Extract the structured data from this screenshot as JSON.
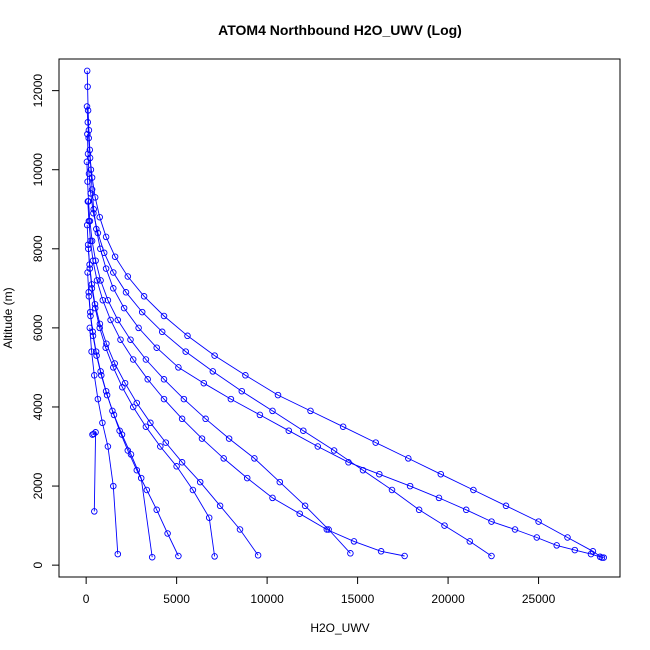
{
  "chart_data": {
    "type": "line",
    "title": "ATOM4 Northbound H2O_UWV (Log)",
    "xlabel": "H2O_UWV",
    "ylabel": "Altitude (m)",
    "xlim": [
      -1500,
      29500
    ],
    "ylim": [
      -300,
      12800
    ],
    "xticks": [
      0,
      5000,
      10000,
      15000,
      20000,
      25000
    ],
    "yticks": [
      0,
      2000,
      4000,
      6000,
      8000,
      10000,
      12000
    ],
    "series_color": "#0000ff",
    "marker": "open-circle",
    "grid": false,
    "series": [
      {
        "x": [
          60,
          80,
          110,
          150,
          200,
          260,
          330,
          420,
          560,
          780,
          1100,
          1500,
          2100,
          2900,
          3900,
          5100,
          6500,
          8000,
          9600,
          11200,
          12800,
          14500,
          16200,
          17900,
          19500,
          21000,
          22400,
          23700,
          24900,
          26000,
          27000,
          27900,
          28400,
          28600
        ],
        "y": [
          12500,
          12100,
          11500,
          11000,
          10500,
          10000,
          9500,
          9000,
          8500,
          8000,
          7500,
          7000,
          6500,
          6000,
          5500,
          5000,
          4600,
          4200,
          3800,
          3400,
          3000,
          2600,
          2300,
          2000,
          1700,
          1400,
          1100,
          900,
          700,
          500,
          380,
          280,
          210,
          190
        ]
      },
      {
        "x": [
          50,
          90,
          140,
          220,
          330,
          500,
          750,
          1100,
          1600,
          2300,
          3200,
          4300,
          5600,
          7100,
          8800,
          10600,
          12400,
          14200,
          16000,
          17800,
          19600,
          21400,
          23200,
          25000,
          26600,
          28000,
          28500
        ],
        "y": [
          11600,
          11200,
          10800,
          10300,
          9800,
          9300,
          8800,
          8300,
          7800,
          7300,
          6800,
          6300,
          5800,
          5300,
          4800,
          4300,
          3900,
          3500,
          3100,
          2700,
          2300,
          1900,
          1500,
          1100,
          700,
          350,
          190
        ]
      },
      {
        "x": [
          70,
          100,
          160,
          250,
          400,
          650,
          1000,
          1500,
          2200,
          3100,
          4200,
          5500,
          7000,
          8600,
          10300,
          12000,
          13700,
          15300,
          16900,
          18400,
          19800,
          21200,
          22400
        ],
        "y": [
          10900,
          10400,
          9900,
          9400,
          8900,
          8400,
          7900,
          7400,
          6900,
          6400,
          5900,
          5400,
          4900,
          4400,
          3900,
          3400,
          2900,
          2400,
          1900,
          1400,
          1000,
          600,
          230
        ]
      },
      {
        "x": [
          40,
          80,
          130,
          210,
          330,
          520,
          800,
          1200,
          1750,
          2450,
          3300,
          4300,
          5400,
          6600,
          7900,
          9300,
          10700,
          12100,
          13400,
          14600
        ],
        "y": [
          10200,
          9700,
          9200,
          8700,
          8200,
          7700,
          7200,
          6700,
          6200,
          5700,
          5200,
          4700,
          4200,
          3700,
          3200,
          2700,
          2100,
          1500,
          900,
          300
        ]
      },
      {
        "x": [
          90,
          150,
          240,
          380,
          600,
          920,
          1350,
          1900,
          2600,
          3400,
          4300,
          5300,
          6400,
          7600,
          8900,
          10300,
          11800,
          13300,
          14800,
          16300,
          17600
        ],
        "y": [
          9200,
          8700,
          8200,
          7700,
          7200,
          6700,
          6200,
          5700,
          5200,
          4700,
          4200,
          3700,
          3200,
          2700,
          2200,
          1700,
          1300,
          900,
          600,
          350,
          230
        ]
      },
      {
        "x": [
          60,
          110,
          190,
          310,
          490,
          760,
          1120,
          1580,
          2150,
          2800,
          3550,
          4400,
          5300,
          6300,
          7400,
          8500,
          9500
        ],
        "y": [
          8600,
          8100,
          7600,
          7100,
          6600,
          6100,
          5600,
          5100,
          4600,
          4100,
          3600,
          3100,
          2600,
          2100,
          1500,
          900,
          250
        ]
      },
      {
        "x": [
          120,
          200,
          320,
          500,
          750,
          1080,
          1500,
          2000,
          2600,
          3300,
          4100,
          5000,
          5900,
          6800,
          7100
        ],
        "y": [
          8000,
          7500,
          7000,
          6500,
          6000,
          5500,
          5000,
          4500,
          4000,
          3500,
          3000,
          2500,
          1900,
          1200,
          220
        ]
      },
      {
        "x": [
          80,
          140,
          230,
          360,
          550,
          800,
          1100,
          1450,
          1850,
          2300,
          2800,
          3350,
          3900,
          4500,
          5100
        ],
        "y": [
          7400,
          6900,
          6400,
          5900,
          5400,
          4900,
          4400,
          3900,
          3400,
          2900,
          2400,
          1900,
          1400,
          800,
          230
        ]
      },
      {
        "x": [
          150,
          240,
          380,
          580,
          840,
          1160,
          1540,
          1980,
          2480,
          3040,
          3650
        ],
        "y": [
          6800,
          6300,
          5800,
          5300,
          4800,
          4300,
          3800,
          3300,
          2800,
          2200,
          200
        ]
      },
      {
        "x": [
          200,
          300,
          450,
          650,
          900,
          1200,
          1500,
          1750
        ],
        "y": [
          6000,
          5400,
          4800,
          4200,
          3600,
          3000,
          2000,
          280
        ]
      },
      {
        "x": [
          350,
          420,
          520,
          450
        ],
        "y": [
          3300,
          3320,
          3360,
          1360
        ]
      }
    ]
  }
}
